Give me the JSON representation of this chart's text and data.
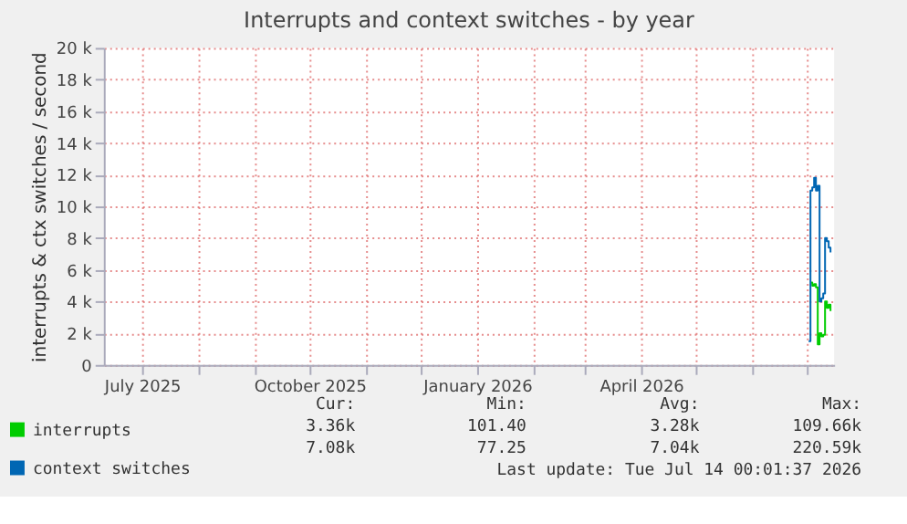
{
  "chart_data": {
    "type": "line",
    "title": "Interrupts and context switches - by year",
    "ylabel": "interrupts & ctx switches / second",
    "x": [
      "2026-07-02",
      "2026-07-03",
      "2026-07-04",
      "2026-07-05",
      "2026-07-06",
      "2026-07-07",
      "2026-07-08",
      "2026-07-09",
      "2026-07-10",
      "2026-07-11",
      "2026-07-12",
      "2026-07-13",
      "2026-07-14"
    ],
    "series": [
      {
        "name": "interrupts",
        "color": "#00cc00",
        "values": [
          null,
          5200,
          5000,
          5100,
          4900,
          1300,
          2000,
          1800,
          1900,
          4000,
          3600,
          3800,
          3400
        ]
      },
      {
        "name": "context switches",
        "color": "#0066b3",
        "values": [
          1500,
          11000,
          11200,
          11800,
          11000,
          11300,
          4000,
          4200,
          4500,
          8000,
          7800,
          7400,
          7100
        ]
      }
    ],
    "xlim": [
      "2025-06-10",
      "2026-07-16"
    ],
    "xticks": [
      {
        "value": "2025-07-01",
        "label": "July 2025"
      },
      {
        "value": "2025-08-01",
        "label": null
      },
      {
        "value": "2025-09-01",
        "label": null
      },
      {
        "value": "2025-10-01",
        "label": "October 2025"
      },
      {
        "value": "2025-11-01",
        "label": null
      },
      {
        "value": "2025-12-01",
        "label": null
      },
      {
        "value": "2026-01-01",
        "label": "January 2026"
      },
      {
        "value": "2026-02-01",
        "label": null
      },
      {
        "value": "2026-03-01",
        "label": null
      },
      {
        "value": "2026-04-01",
        "label": "April 2026"
      },
      {
        "value": "2026-05-01",
        "label": null
      },
      {
        "value": "2026-06-01",
        "label": null
      },
      {
        "value": "2026-07-01",
        "label": null
      }
    ],
    "ylim": [
      0,
      20000
    ],
    "yticks": [
      {
        "value": 0,
        "label": "0"
      },
      {
        "value": 2000,
        "label": "2 k"
      },
      {
        "value": 4000,
        "label": "4 k"
      },
      {
        "value": 6000,
        "label": "6 k"
      },
      {
        "value": 8000,
        "label": "8 k"
      },
      {
        "value": 10000,
        "label": "10 k"
      },
      {
        "value": 12000,
        "label": "12 k"
      },
      {
        "value": 14000,
        "label": "14 k"
      },
      {
        "value": 16000,
        "label": "16 k"
      },
      {
        "value": 18000,
        "label": "18 k"
      },
      {
        "value": 20000,
        "label": "20 k"
      }
    ],
    "grid": true,
    "legend": "bottom",
    "annotations": [
      "Cur:",
      "Min:",
      "Avg:",
      "Max:",
      "3.36k",
      "101.40",
      "3.28k",
      "109.66k",
      "7.08k",
      "77.25",
      "7.04k",
      "220.59k",
      "Last update: Tue Jul 14 00:01:37 2026"
    ]
  }
}
